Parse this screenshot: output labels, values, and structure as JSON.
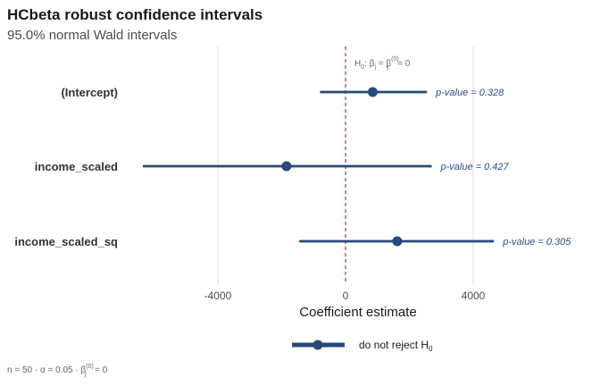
{
  "colors": {
    "series": "#264a79",
    "reference_line": "#b23b3b",
    "grid": "#dedede"
  },
  "header": {
    "title": "HCbeta robust confidence intervals",
    "subtitle": "95.0% normal Wald intervals"
  },
  "reference": {
    "label_main": "H",
    "label_sub": "0",
    "label_rest": ": β",
    "label_j1": "j",
    "label_eq": " = β",
    "label_sup": "(0)",
    "label_j2": "j",
    "label_end": " = 0"
  },
  "legend": {
    "label_main": "do not reject H",
    "label_sub": "0"
  },
  "caption": {
    "text_a": "n = 50  ·  α = 0.05  ·  β",
    "sup": "(0)",
    "sub": "j",
    "text_b": " = 0"
  },
  "chart_data": {
    "type": "forest",
    "title": "HCbeta robust confidence intervals",
    "subtitle": "95.0% normal Wald intervals",
    "xlabel": "Coefficient estimate",
    "xlim": [
      -6500,
      7200
    ],
    "xticks": [
      -4000,
      0,
      4000
    ],
    "xtick_labels": [
      "-4000",
      "0",
      "4000"
    ],
    "reference_value": 0,
    "series": [
      {
        "term": "(Intercept)",
        "estimate": 850,
        "lower": -800,
        "upper": 2550,
        "p_label": "p-value = 0.328"
      },
      {
        "term": "income_scaled",
        "estimate": -1850,
        "lower": -6350,
        "upper": 2700,
        "p_label": "p-value = 0.427"
      },
      {
        "term": "income_scaled_sq",
        "estimate": 1620,
        "lower": -1450,
        "upper": 4650,
        "p_label": "p-value = 0.305"
      }
    ]
  }
}
